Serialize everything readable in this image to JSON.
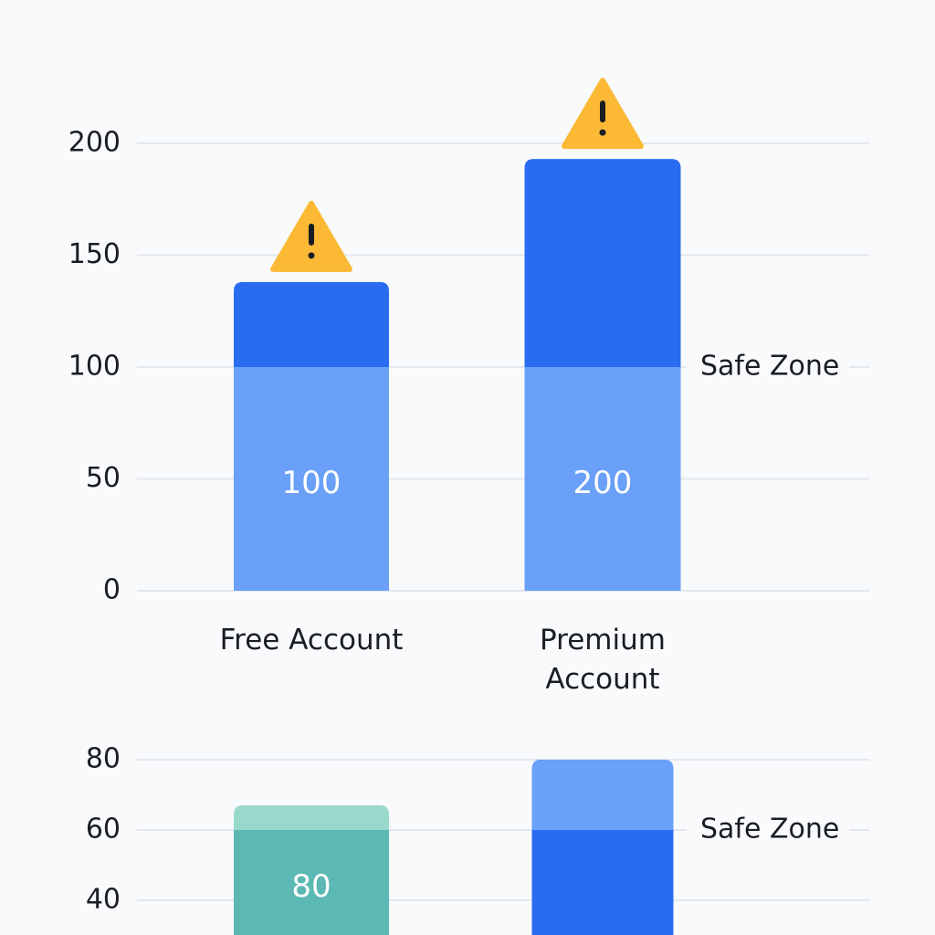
{
  "chart_data": [
    {
      "type": "bar",
      "categories": [
        "Free Account",
        "Premium Account"
      ],
      "values": [
        138,
        193
      ],
      "inner_labels": [
        "100",
        "200"
      ],
      "threshold": {
        "value": 100,
        "label": "Safe Zone"
      },
      "colors": [
        {
          "below": "#6aa0f8",
          "above": "#2a6cf0"
        },
        {
          "below": "#6aa0f8",
          "above": "#2a6cf0"
        }
      ],
      "ylim": [
        0,
        200
      ],
      "yticks": [
        0,
        50,
        100,
        150,
        200
      ],
      "grid": true,
      "warning_icons": true
    },
    {
      "type": "bar",
      "categories": [
        null,
        null
      ],
      "values": [
        67,
        80
      ],
      "inner_labels": [
        "80",
        null
      ],
      "threshold": {
        "value": 60,
        "label": "Safe Zone"
      },
      "colors": [
        {
          "below": "#5cb8b2",
          "above": "#99d9cc"
        },
        {
          "below": "#2a6cf0",
          "above": "#6aa0f8"
        }
      ],
      "ylim": [
        30,
        80
      ],
      "yticks": [
        40,
        60,
        80
      ],
      "grid": true,
      "warning_icons": false
    }
  ]
}
